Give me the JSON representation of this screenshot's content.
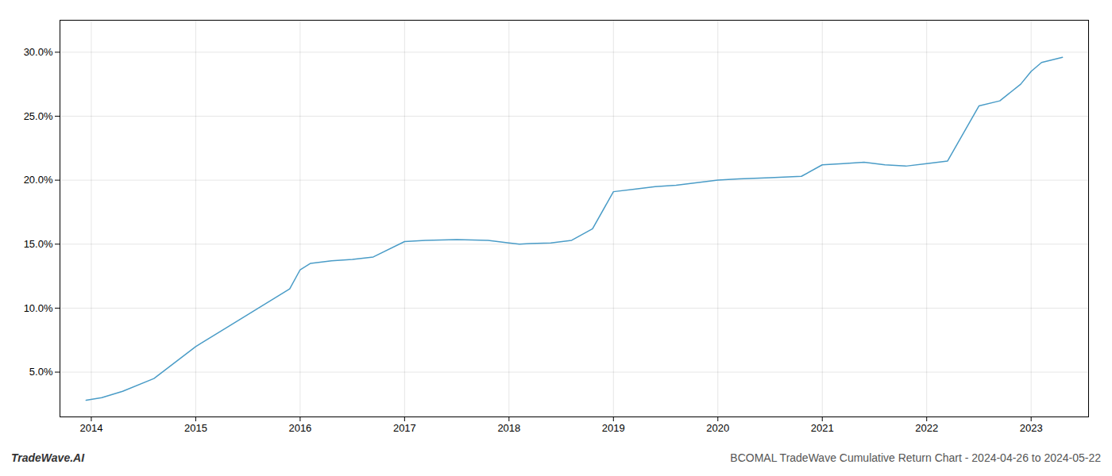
{
  "chart_data": {
    "type": "line",
    "x": [
      2013.95,
      2014.1,
      2014.3,
      2014.6,
      2015.0,
      2015.3,
      2015.6,
      2015.9,
      2016.0,
      2016.1,
      2016.3,
      2016.5,
      2016.7,
      2017.0,
      2017.2,
      2017.5,
      2017.8,
      2018.0,
      2018.1,
      2018.2,
      2018.4,
      2018.6,
      2018.8,
      2019.0,
      2019.2,
      2019.4,
      2019.6,
      2020.0,
      2020.2,
      2020.5,
      2020.8,
      2021.0,
      2021.2,
      2021.4,
      2021.6,
      2021.8,
      2022.0,
      2022.2,
      2022.5,
      2022.7,
      2022.9,
      2023.0,
      2023.1,
      2023.3
    ],
    "values": [
      2.8,
      3.0,
      3.5,
      4.5,
      7.0,
      8.5,
      10.0,
      11.5,
      13.0,
      13.5,
      13.7,
      13.8,
      14.0,
      15.2,
      15.3,
      15.35,
      15.3,
      15.1,
      15.0,
      15.05,
      15.1,
      15.3,
      16.2,
      19.1,
      19.3,
      19.5,
      19.6,
      20.0,
      20.1,
      20.2,
      20.3,
      21.2,
      21.3,
      21.4,
      21.2,
      21.1,
      21.3,
      21.5,
      25.8,
      26.2,
      27.5,
      28.5,
      29.2,
      29.6
    ],
    "color": "#4a9cc7",
    "xlim": [
      2013.7,
      2023.55
    ],
    "xticks": [
      2014,
      2015,
      2016,
      2017,
      2018,
      2019,
      2020,
      2021,
      2022,
      2023
    ],
    "ylim": [
      1.5,
      32.5
    ],
    "yticks": [
      {
        "value": 5.0,
        "label": "5.0%"
      },
      {
        "value": 10.0,
        "label": "10.0%"
      },
      {
        "value": 15.0,
        "label": "15.0%"
      },
      {
        "value": 20.0,
        "label": "20.0%"
      },
      {
        "value": 25.0,
        "label": "25.0%"
      },
      {
        "value": 30.0,
        "label": "30.0%"
      }
    ],
    "grid": true,
    "annotations": [
      "TradeWave.AI",
      "BCOMAL TradeWave Cumulative Return Chart - 2024-04-26 to 2024-05-22"
    ]
  }
}
